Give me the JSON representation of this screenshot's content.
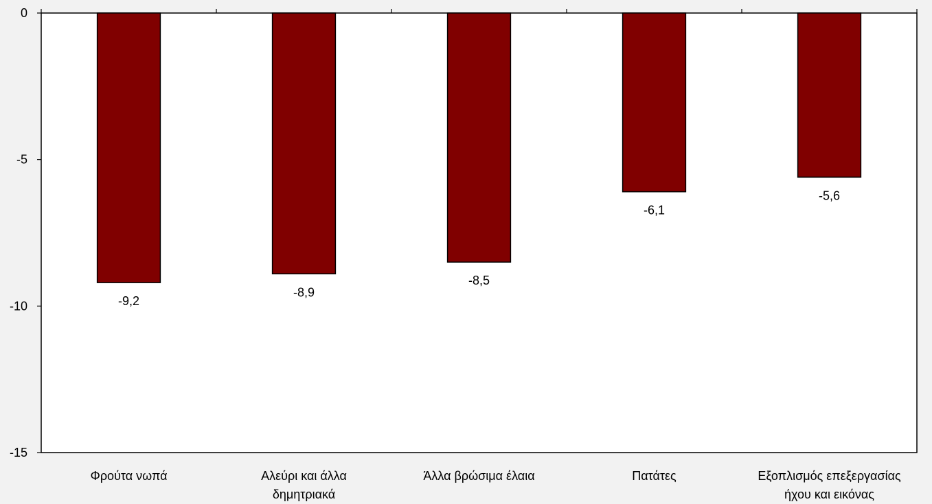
{
  "chart_data": {
    "type": "bar",
    "categories": [
      [
        "Φρούτα νωπά"
      ],
      [
        "Αλεύρι και άλλα",
        "δημητριακά"
      ],
      [
        "Άλλα βρώσιμα έλαια"
      ],
      [
        "Πατάτες"
      ],
      [
        "Εξοπλισμός επεξεργασίας",
        "ήχου και εικόνας"
      ]
    ],
    "values": [
      -9.2,
      -8.9,
      -8.5,
      -6.1,
      -5.6
    ],
    "data_labels": [
      "-9,2",
      "-8,9",
      "-8,5",
      "-6,1",
      "-5,6"
    ],
    "ylim": [
      -15,
      0
    ],
    "yticks": [
      0,
      -5,
      -10,
      -15
    ],
    "ytick_labels": [
      "0",
      "-5",
      "-10",
      "-15"
    ],
    "title": "",
    "xlabel": "",
    "ylabel": "",
    "grid": false,
    "bar_color": "#800000",
    "plot_background": "#ffffff",
    "page_background": "#f2f2f2"
  }
}
